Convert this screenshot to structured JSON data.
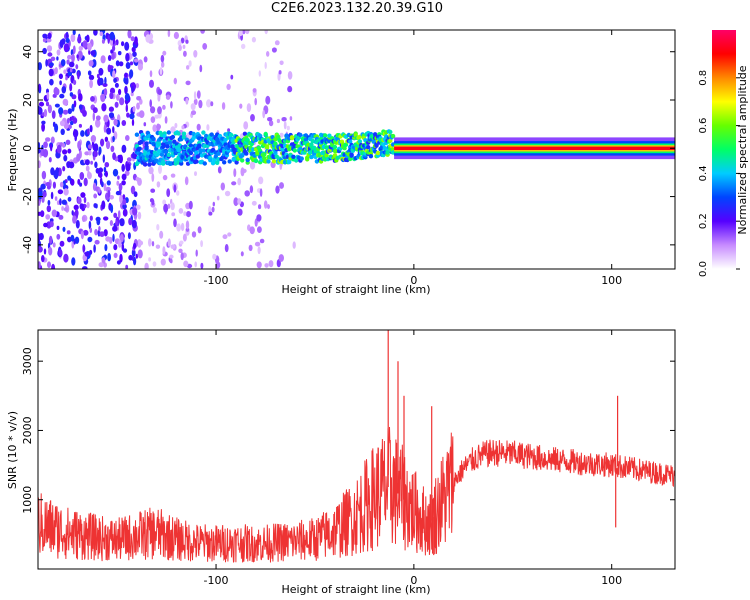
{
  "title": "C2E6.2023.132.20.39.G10",
  "chart_data": [
    {
      "type": "heatmap",
      "xlabel": "Height of straight line (km)",
      "ylabel": "Frequency (Hz)",
      "xlim": [
        -190,
        132
      ],
      "ylim": [
        -50,
        49
      ],
      "x_ticks": [
        -100,
        0,
        100
      ],
      "y_ticks": [
        -40,
        -20,
        0,
        20,
        40
      ],
      "colorbar": {
        "label": "Normalized spectral amplitude",
        "range": [
          0,
          1
        ],
        "ticks": [
          "0.0",
          "0.2",
          "0.4",
          "0.6",
          "0.8"
        ],
        "colors": [
          "#ffffff",
          "#c78bff",
          "#5500ff",
          "#0044ff",
          "#00ccff",
          "#00ff66",
          "#66ff00",
          "#ffff00",
          "#ff8800",
          "#ff0000",
          "#ff0066"
        ]
      },
      "description_values": {
        "noise_region_km": [
          -190,
          -60
        ],
        "signal_band_start_km": -140,
        "signal_center_hz": 0,
        "strong_line_start_km": -10
      }
    },
    {
      "type": "line",
      "xlabel": "Height of straight line (km)",
      "ylabel": "SNR (10 * v/v)",
      "xlim": [
        -190,
        132
      ],
      "ylim": [
        0,
        3450
      ],
      "x_ticks": [
        -100,
        0,
        100
      ],
      "y_ticks": [
        1000,
        2000,
        3000
      ],
      "series_color": "#ee3333",
      "anchor_points": [
        [
          -190,
          650
        ],
        [
          -175,
          520
        ],
        [
          -160,
          450
        ],
        [
          -150,
          420
        ],
        [
          -140,
          480
        ],
        [
          -130,
          520
        ],
        [
          -120,
          430
        ],
        [
          -110,
          380
        ],
        [
          -100,
          370
        ],
        [
          -90,
          380
        ],
        [
          -80,
          360
        ],
        [
          -70,
          380
        ],
        [
          -60,
          400
        ],
        [
          -50,
          430
        ],
        [
          -40,
          550
        ],
        [
          -30,
          750
        ],
        [
          -25,
          900
        ],
        [
          -20,
          1050
        ],
        [
          -15,
          1150
        ],
        [
          -12,
          1200
        ],
        [
          -10,
          1150
        ],
        [
          -5,
          1000
        ],
        [
          0,
          850
        ],
        [
          5,
          700
        ],
        [
          8,
          650
        ],
        [
          10,
          750
        ],
        [
          15,
          1000
        ],
        [
          20,
          1250
        ],
        [
          25,
          1450
        ],
        [
          30,
          1580
        ],
        [
          35,
          1650
        ],
        [
          40,
          1680
        ],
        [
          50,
          1660
        ],
        [
          60,
          1620
        ],
        [
          70,
          1580
        ],
        [
          80,
          1550
        ],
        [
          90,
          1520
        ],
        [
          100,
          1500
        ],
        [
          110,
          1450
        ],
        [
          120,
          1400
        ],
        [
          132,
          1350
        ]
      ],
      "spikes": [
        [
          -13,
          3450
        ],
        [
          -8,
          3000
        ],
        [
          -5,
          2500
        ],
        [
          9,
          2350
        ],
        [
          10,
          200
        ],
        [
          11,
          300
        ],
        [
          103,
          2500
        ],
        [
          102,
          600
        ]
      ]
    }
  ]
}
